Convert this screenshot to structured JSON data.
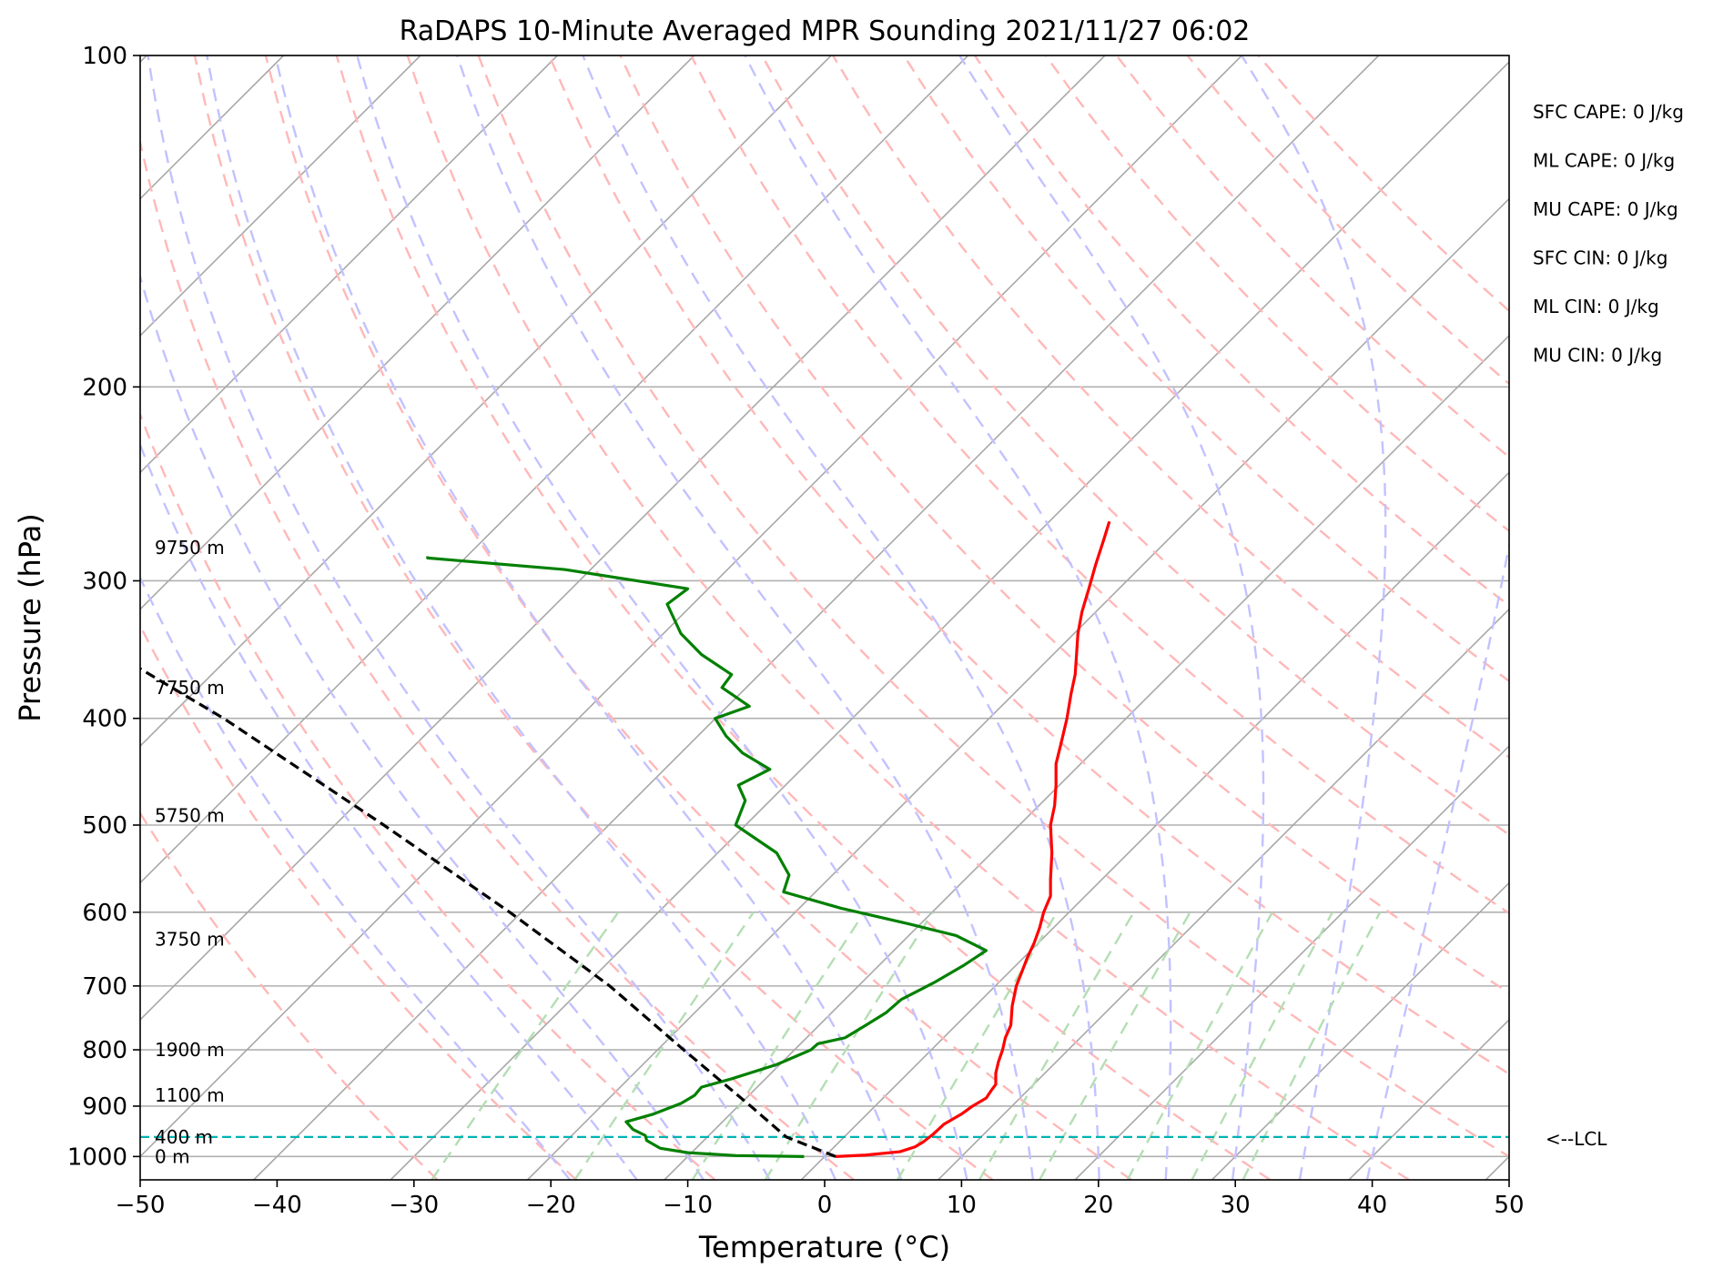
{
  "chart_data": {
    "type": "line",
    "title": "RaDAPS 10-Minute Averaged MPR Sounding 2021/11/27 06:02",
    "xlabel": "Temperature (°C)",
    "ylabel": "Pressure (hPa)",
    "xlim": [
      -50,
      50
    ],
    "ylim": [
      1050,
      100
    ],
    "y_scale": "log",
    "grid": true,
    "x_ticks": [
      "−50",
      "−40",
      "−30",
      "−20",
      "−10",
      "0",
      "10",
      "20",
      "30",
      "40",
      "50"
    ],
    "y_ticks": [
      {
        "p": 100,
        "label": "100"
      },
      {
        "p": 200,
        "label": "200"
      },
      {
        "p": 300,
        "label": "300"
      },
      {
        "p": 400,
        "label": "400"
      },
      {
        "p": 500,
        "label": "500"
      },
      {
        "p": 600,
        "label": "600"
      },
      {
        "p": 700,
        "label": "700"
      },
      {
        "p": 800,
        "label": "800"
      },
      {
        "p": 900,
        "label": "900"
      },
      {
        "p": 1000,
        "label": "1000"
      }
    ],
    "height_labels": [
      {
        "p": 1000,
        "text": "0 m"
      },
      {
        "p": 960,
        "text": "400 m"
      },
      {
        "p": 880,
        "text": "1100 m"
      },
      {
        "p": 800,
        "text": "1900 m"
      },
      {
        "p": 635,
        "text": "3750 m"
      },
      {
        "p": 490,
        "text": "5750 m"
      },
      {
        "p": 375,
        "text": "7750 m"
      },
      {
        "p": 280,
        "text": "9750 m"
      }
    ],
    "stats": [
      "SFC CAPE: 0 J/kg",
      "ML CAPE: 0 J/kg",
      "MU CAPE: 0 J/kg",
      "SFC CIN: 0 J/kg",
      "ML CIN: 0 J/kg",
      "MU CIN: 0 J/kg"
    ],
    "lcl": {
      "p": 960,
      "label": "<--LCL",
      "color": "#00b3b3"
    },
    "series": [
      {
        "color": "#ff0000",
        "points": [
          [
            1000,
            0.8
          ],
          [
            997,
            3.0
          ],
          [
            990,
            5.5
          ],
          [
            980,
            6.6
          ],
          [
            970,
            7.2
          ],
          [
            955,
            7.9
          ],
          [
            935,
            8.7
          ],
          [
            915,
            10.0
          ],
          [
            900,
            10.8
          ],
          [
            885,
            11.8
          ],
          [
            870,
            12.2
          ],
          [
            860,
            12.5
          ],
          [
            840,
            12.5
          ],
          [
            820,
            12.7
          ],
          [
            800,
            13.0
          ],
          [
            780,
            13.2
          ],
          [
            760,
            13.6
          ],
          [
            730,
            13.7
          ],
          [
            700,
            14.0
          ],
          [
            680,
            14.4
          ],
          [
            660,
            14.8
          ],
          [
            640,
            15.3
          ],
          [
            620,
            15.7
          ],
          [
            600,
            16.0
          ],
          [
            580,
            16.5
          ],
          [
            560,
            16.5
          ],
          [
            530,
            16.6
          ],
          [
            500,
            16.5
          ],
          [
            480,
            16.8
          ],
          [
            460,
            16.9
          ],
          [
            440,
            16.9
          ],
          [
            420,
            17.3
          ],
          [
            400,
            17.7
          ],
          [
            380,
            18.0
          ],
          [
            365,
            18.3
          ],
          [
            350,
            18.4
          ],
          [
            335,
            18.5
          ],
          [
            320,
            18.8
          ],
          [
            305,
            19.3
          ],
          [
            290,
            19.8
          ],
          [
            275,
            20.4
          ],
          [
            265,
            20.8
          ]
        ]
      },
      {
        "color": "#008000",
        "points": [
          [
            1000,
            -1.5
          ],
          [
            998,
            -6.5
          ],
          [
            992,
            -10.0
          ],
          [
            983,
            -12.0
          ],
          [
            967,
            -13.0
          ],
          [
            957,
            -13.1
          ],
          [
            945,
            -14.0
          ],
          [
            930,
            -14.5
          ],
          [
            915,
            -12.5
          ],
          [
            895,
            -10.5
          ],
          [
            880,
            -9.5
          ],
          [
            865,
            -9.0
          ],
          [
            850,
            -6.8
          ],
          [
            825,
            -3.5
          ],
          [
            800,
            -1.0
          ],
          [
            790,
            -0.5
          ],
          [
            780,
            1.5
          ],
          [
            760,
            3.0
          ],
          [
            740,
            4.5
          ],
          [
            720,
            5.6
          ],
          [
            695,
            8.0
          ],
          [
            670,
            10.2
          ],
          [
            650,
            11.8
          ],
          [
            630,
            9.6
          ],
          [
            615,
            6.2
          ],
          [
            595,
            1.2
          ],
          [
            575,
            -3.0
          ],
          [
            555,
            -2.6
          ],
          [
            530,
            -3.5
          ],
          [
            500,
            -6.5
          ],
          [
            475,
            -5.8
          ],
          [
            460,
            -6.3
          ],
          [
            445,
            -4.0
          ],
          [
            430,
            -6.0
          ],
          [
            415,
            -7.2
          ],
          [
            400,
            -8.0
          ],
          [
            390,
            -5.5
          ],
          [
            375,
            -7.5
          ],
          [
            365,
            -6.8
          ],
          [
            350,
            -9.0
          ],
          [
            335,
            -10.5
          ],
          [
            315,
            -11.5
          ],
          [
            305,
            -10.0
          ],
          [
            293,
            -19.0
          ],
          [
            286,
            -29.0
          ],
          [
            285,
            -29.0
          ]
        ]
      },
      {
        "color": "#000000",
        "dashed": true,
        "points": [
          [
            1000,
            0.8
          ],
          [
            960,
            -2.8
          ],
          [
            900,
            -5.4
          ],
          [
            800,
            -10.3
          ],
          [
            700,
            -15.7
          ],
          [
            600,
            -23.0
          ],
          [
            500,
            -32.2
          ],
          [
            400,
            -43.9
          ],
          [
            300,
            -60.8
          ],
          [
            287,
            -63.6
          ]
        ]
      }
    ],
    "dry_adiabats_theta_c": [
      -30,
      -20,
      -10,
      0,
      10,
      20,
      30,
      40,
      50,
      60,
      70,
      80,
      90,
      100,
      110,
      120,
      130,
      140,
      150,
      160
    ],
    "moist_adiabats_theta_w_c": [
      -20,
      -15,
      -10,
      -5,
      0,
      5,
      10,
      15,
      20,
      25,
      30,
      35,
      40
    ],
    "mixing_ratio_lines_gkg": [
      0.4,
      1,
      2,
      3,
      6,
      9,
      12,
      18,
      24,
      30
    ],
    "colors": {
      "isotherm": "#a8a8a8",
      "isobar": "#b0b0b0",
      "dry_adiabat": "#ffb8b8",
      "moist_adiabat": "#c2c2ff",
      "mixing_ratio": "#b4deb4",
      "temperature": "#ff0000",
      "dewpoint": "#008000",
      "parcel": "#000000",
      "lcl": "#00b3b3"
    }
  }
}
